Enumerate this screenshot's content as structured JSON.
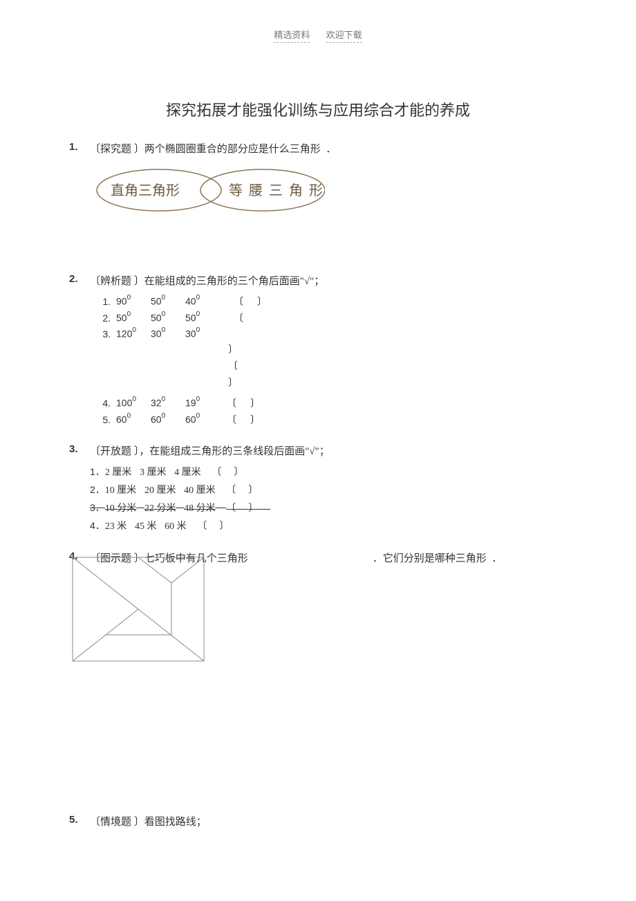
{
  "header": {
    "left": "精选资料",
    "right": "欢迎下载"
  },
  "title": "探究拓展才能强化训练与应用综合才能的养成",
  "q1": {
    "num": "1.",
    "tag": "〔探究题 〕",
    "text": "两个椭圆圈重合的部分应是什么三角形",
    "punct": "．",
    "venn_left": "直角三角形",
    "venn_right": "等腰三角形"
  },
  "q2": {
    "num": "2.",
    "tag": "〔辨析题 〕",
    "text": "在能组成的三角形的三个角后面画\"√\"",
    "punct": "；",
    "rows": [
      {
        "n": "1.",
        "a": "90",
        "b": "50",
        "c": "40",
        "sa": "0",
        "sb": "0",
        "sc": "0"
      },
      {
        "n": "2.",
        "a": "50",
        "b": "50",
        "c": "50",
        "sa": "0",
        "sb": "0",
        "sc": "0"
      },
      {
        "n": "3.",
        "a": "120",
        "b": "30",
        "c": "30",
        "sa": "0",
        "sb": "0",
        "sc": "0"
      },
      {
        "n": "4.",
        "a": "100",
        "b": "32",
        "c": "19",
        "sa": "0",
        "sb": "0",
        "sc": "0"
      },
      {
        "n": "5.",
        "a": "60",
        "b": "60",
        "c": "60",
        "sa": "0",
        "sb": "0",
        "sc": "0"
      }
    ]
  },
  "q3": {
    "num": "3.",
    "tag": "〔开放题 〕，",
    "text": "在能组成三角形的三条线段后面画\"√\"",
    "punct": "；",
    "rows": [
      {
        "n": "1．",
        "a": "2 厘米",
        "b": "3 厘米",
        "c": "4 厘米",
        "strike": false
      },
      {
        "n": "2．",
        "a": "10 厘米",
        "b": "20 厘米",
        "c": "40 厘米",
        "strike": false
      },
      {
        "n": "3．",
        "a": "10 分米",
        "b": "22 分米",
        "c": "48 分米",
        "strike": true
      },
      {
        "n": "4．",
        "a": "23 米",
        "b": "45 米",
        "c": "60 米",
        "strike": false
      }
    ]
  },
  "q4": {
    "num": "4.",
    "tag": "〔图示题 〕",
    "text1": "七巧板中有几个三角形",
    "text2": "．它们分别是哪种三角形",
    "punct": "．"
  },
  "q5": {
    "num": "5.",
    "tag": "〔情境题 〕",
    "text": "看图找路线；"
  },
  "colors": {
    "text": "#333333",
    "header_text": "#777777",
    "line_dash": "#aaaaaa",
    "venn_stroke": "#8b7355",
    "venn_text": "#6b5a3f",
    "tangram_stroke": "#888888",
    "background": "#ffffff"
  }
}
